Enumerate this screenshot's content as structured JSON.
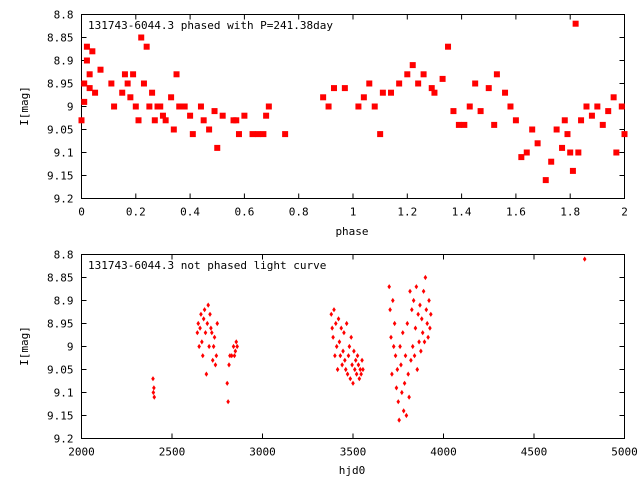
{
  "chart_data": [
    {
      "type": "scatter",
      "title": "131743-6044.3 phased with P=241.38day",
      "xlabel": "phase",
      "ylabel": "I[mag]",
      "xlim": [
        0,
        2
      ],
      "ylim": [
        9.2,
        8.8
      ],
      "y_inverted": true,
      "grid": false,
      "x_ticks": [
        0,
        0.2,
        0.4,
        0.6,
        0.8,
        1,
        1.2,
        1.4,
        1.6,
        1.8,
        2
      ],
      "x_tick_labels": [
        "0",
        "0.2",
        "0.4",
        "0.6",
        "0.8",
        "1",
        "1.2",
        "1.4",
        "1.6",
        "1.8",
        "2"
      ],
      "y_ticks": [
        8.8,
        8.85,
        8.9,
        8.95,
        9,
        9.05,
        9.1,
        9.15,
        9.2
      ],
      "y_tick_labels": [
        "8.8",
        "8.85",
        "8.9",
        "8.95",
        "9",
        "9.05",
        "9.1",
        "9.15",
        "9.2"
      ],
      "marker_color": "#ff0000",
      "marker": "filled-square-large",
      "x": [
        0.0,
        0.01,
        0.01,
        0.02,
        0.02,
        0.03,
        0.03,
        0.04,
        0.05,
        0.07,
        0.11,
        0.12,
        0.15,
        0.16,
        0.17,
        0.18,
        0.19,
        0.2,
        0.21,
        0.22,
        0.23,
        0.24,
        0.25,
        0.26,
        0.27,
        0.28,
        0.29,
        0.3,
        0.31,
        0.33,
        0.34,
        0.35,
        0.36,
        0.38,
        0.4,
        0.41,
        0.44,
        0.45,
        0.47,
        0.49,
        0.5,
        0.52,
        0.56,
        0.57,
        0.58,
        0.6,
        0.63,
        0.65,
        0.67,
        0.68,
        0.69,
        0.75,
        0.89,
        0.91,
        0.93,
        0.97,
        1.02,
        1.04,
        1.06,
        1.08,
        1.1,
        1.11,
        1.14,
        1.17,
        1.2,
        1.22,
        1.24,
        1.26,
        1.29,
        1.3,
        1.33,
        1.35,
        1.37,
        1.39,
        1.41,
        1.43,
        1.45,
        1.47,
        1.5,
        1.52,
        1.53,
        1.56,
        1.58,
        1.6,
        1.62,
        1.64,
        1.66,
        1.68,
        1.71,
        1.73,
        1.75,
        1.77,
        1.78,
        1.79,
        1.8,
        1.81,
        1.82,
        1.83,
        1.84,
        1.86,
        1.88,
        1.9,
        1.92,
        1.94,
        1.96,
        1.97,
        1.99,
        2.0
      ],
      "y": [
        9.03,
        8.99,
        8.95,
        8.9,
        8.87,
        8.93,
        8.96,
        8.88,
        8.97,
        8.92,
        8.95,
        9.0,
        8.97,
        8.93,
        8.95,
        8.98,
        8.93,
        9.0,
        9.03,
        8.85,
        8.95,
        8.87,
        9.0,
        8.97,
        9.03,
        9.0,
        9.0,
        9.02,
        9.03,
        8.98,
        9.05,
        8.93,
        9.0,
        9.0,
        9.02,
        9.06,
        9.0,
        9.03,
        9.05,
        9.01,
        9.09,
        9.02,
        9.03,
        9.03,
        9.06,
        9.02,
        9.06,
        9.06,
        9.06,
        9.02,
        9.0,
        9.06,
        8.98,
        9.0,
        8.96,
        8.96,
        9.0,
        8.98,
        8.95,
        9.0,
        9.06,
        8.97,
        8.97,
        8.95,
        8.93,
        8.91,
        8.95,
        8.93,
        8.96,
        8.97,
        8.94,
        8.87,
        9.01,
        9.04,
        9.04,
        9.0,
        8.95,
        9.01,
        8.96,
        9.04,
        8.93,
        8.97,
        9.0,
        9.03,
        9.11,
        9.1,
        9.05,
        9.08,
        9.16,
        9.12,
        9.05,
        9.09,
        9.03,
        9.06,
        9.1,
        9.14,
        8.82,
        9.1,
        9.03,
        9.0,
        9.02,
        9.0,
        9.04,
        9.01,
        8.98,
        9.1,
        9.0,
        9.06
      ]
    },
    {
      "type": "scatter",
      "title": "131743-6044.3 not phased light curve",
      "xlabel": "hjd0",
      "ylabel": "I[mag]",
      "xlim": [
        2000,
        5000
      ],
      "ylim": [
        9.2,
        8.8
      ],
      "y_inverted": true,
      "grid": false,
      "x_ticks": [
        2000,
        2500,
        3000,
        3500,
        4000,
        4500,
        5000
      ],
      "x_tick_labels": [
        "2000",
        "2500",
        "3000",
        "3500",
        "4000",
        "4500",
        "5000"
      ],
      "y_ticks": [
        8.8,
        8.85,
        8.9,
        8.95,
        9,
        9.05,
        9.1,
        9.15,
        9.2
      ],
      "y_tick_labels": [
        "8.8",
        "8.85",
        "8.9",
        "8.95",
        "9",
        "9.05",
        "9.1",
        "9.15",
        "9.2"
      ],
      "marker_color": "#ff0000",
      "marker": "filled-diamond-small",
      "x": [
        2395,
        2397,
        2400,
        2402,
        2640,
        2645,
        2650,
        2655,
        2660,
        2665,
        2670,
        2675,
        2680,
        2685,
        2690,
        2695,
        2700,
        2705,
        2710,
        2715,
        2720,
        2725,
        2730,
        2735,
        2740,
        2745,
        2750,
        2805,
        2810,
        2815,
        2820,
        2830,
        2840,
        2845,
        2850,
        2855,
        2860,
        3380,
        3385,
        3390,
        3395,
        3400,
        3405,
        3410,
        3415,
        3420,
        3425,
        3430,
        3435,
        3440,
        3445,
        3450,
        3455,
        3460,
        3465,
        3470,
        3475,
        3480,
        3485,
        3490,
        3495,
        3500,
        3505,
        3510,
        3515,
        3520,
        3525,
        3530,
        3535,
        3540,
        3545,
        3550,
        3555,
        3700,
        3705,
        3710,
        3715,
        3720,
        3725,
        3730,
        3735,
        3740,
        3745,
        3750,
        3755,
        3760,
        3765,
        3770,
        3775,
        3780,
        3785,
        3790,
        3795,
        3800,
        3805,
        3810,
        3815,
        3820,
        3825,
        3830,
        3835,
        3840,
        3845,
        3850,
        3855,
        3860,
        3865,
        3870,
        3875,
        3880,
        3885,
        3890,
        3895,
        3900,
        3905,
        3910,
        3915,
        3920,
        3925,
        3930,
        4780
      ],
      "y": [
        9.07,
        9.1,
        9.09,
        9.11,
        8.97,
        8.95,
        9.0,
        8.96,
        8.93,
        8.99,
        9.02,
        8.94,
        8.92,
        8.97,
        9.06,
        8.95,
        8.91,
        9.0,
        8.93,
        8.96,
        8.97,
        9.03,
        9.0,
        8.98,
        9.04,
        9.02,
        8.95,
        9.08,
        9.12,
        9.04,
        9.02,
        9.02,
        9.0,
        9.02,
        9.01,
        8.99,
        9.0,
        8.93,
        8.96,
        8.98,
        8.92,
        9.02,
        8.95,
        9.0,
        9.05,
        8.94,
        8.99,
        9.02,
        8.96,
        9.04,
        9.01,
        8.97,
        9.03,
        9.05,
        8.95,
        9.06,
        9.02,
        9.0,
        9.07,
        8.98,
        9.04,
        9.08,
        9.01,
        9.05,
        9.03,
        9.06,
        9.02,
        9.04,
        9.07,
        9.05,
        9.06,
        9.03,
        9.05,
        8.87,
        8.92,
        8.98,
        9.06,
        8.9,
        9.0,
        8.95,
        9.02,
        9.09,
        9.05,
        9.12,
        9.16,
        9.0,
        9.04,
        9.1,
        8.97,
        9.14,
        9.08,
        9.02,
        9.15,
        8.95,
        9.06,
        9.11,
        8.88,
        9.03,
        8.92,
        9.0,
        8.9,
        9.02,
        8.96,
        8.87,
        9.05,
        8.93,
        8.99,
        8.91,
        9.01,
        8.94,
        8.97,
        8.88,
        8.99,
        8.85,
        8.92,
        8.95,
        8.98,
        8.9,
        8.96,
        8.93,
        8.81
      ]
    }
  ]
}
